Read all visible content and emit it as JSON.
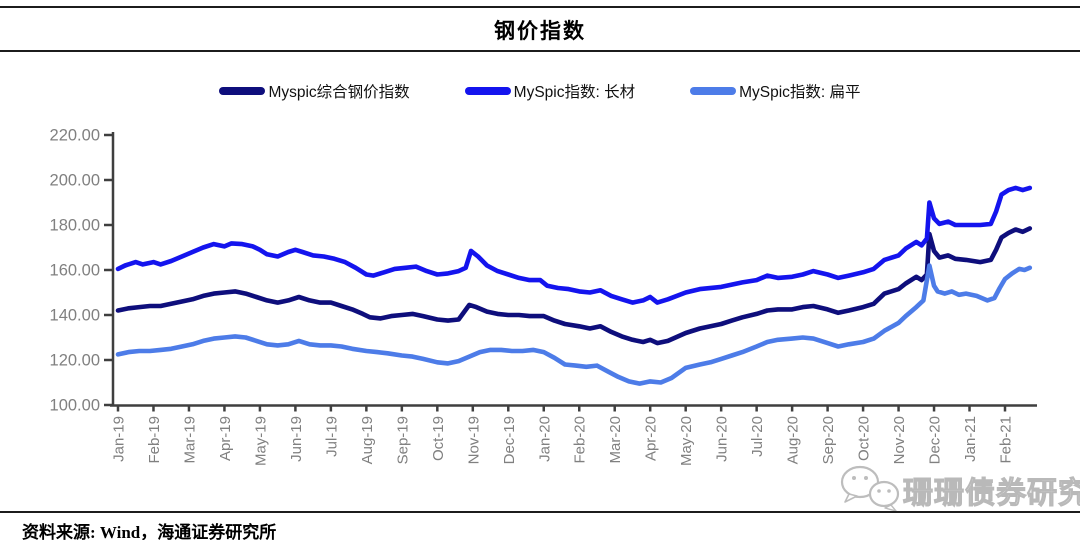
{
  "title": "钢价指数",
  "source_note": "资料来源: Wind，海通证券研究所",
  "watermark": {
    "icon": "wechat-logo",
    "text": "珊珊债券研究"
  },
  "colors": {
    "navy": "#0e0e7c",
    "blue": "#1414ee",
    "light_blue": "#4d7ce8",
    "axis": "#3f3f3f",
    "tick_label": "#808080",
    "watermark": "#b9b9b9"
  },
  "legend": [
    {
      "label": "Myspic综合钢价指数",
      "color": "#0e0e7c"
    },
    {
      "label": "MySpic指数: 长材",
      "color": "#1414ee"
    },
    {
      "label": "MySpic指数: 扁平",
      "color": "#4d7ce8"
    }
  ],
  "chart_data": {
    "type": "line",
    "title": "钢价指数",
    "xlabel": "",
    "ylabel": "",
    "ylim": [
      100,
      220
    ],
    "grid": false,
    "legend_position": "top",
    "x_unit": "month index, 0 = Jan-19",
    "x_tick_labels": [
      "Jan-19",
      "Feb-19",
      "Mar-19",
      "Apr-19",
      "May-19",
      "Jun-19",
      "Jul-19",
      "Aug-19",
      "Sep-19",
      "Oct-19",
      "Nov-19",
      "Dec-19",
      "Jan-20",
      "Feb-20",
      "Mar-20",
      "Apr-20",
      "May-20",
      "Jun-20",
      "Jul-20",
      "Aug-20",
      "Sep-20",
      "Oct-20",
      "Nov-20",
      "Dec-20",
      "Jan-21",
      "Feb-21"
    ],
    "y_ticks": [
      {
        "value": 100,
        "label": "100.00"
      },
      {
        "value": 120,
        "label": "120.00"
      },
      {
        "value": 140,
        "label": "140.00"
      },
      {
        "value": 160,
        "label": "160.00"
      },
      {
        "value": 180,
        "label": "180.00"
      },
      {
        "value": 200,
        "label": "200.00"
      },
      {
        "value": 220,
        "label": "220.00"
      }
    ],
    "series": [
      {
        "name": "Myspic综合钢价指数",
        "color": "#0e0e7c",
        "points": [
          [
            0,
            142
          ],
          [
            0.3,
            143
          ],
          [
            0.6,
            143.5
          ],
          [
            0.9,
            144
          ],
          [
            1.2,
            144
          ],
          [
            1.5,
            145
          ],
          [
            1.8,
            146
          ],
          [
            2.1,
            147
          ],
          [
            2.4,
            148.5
          ],
          [
            2.7,
            149.5
          ],
          [
            3,
            150
          ],
          [
            3.3,
            150.5
          ],
          [
            3.6,
            149.5
          ],
          [
            3.9,
            148
          ],
          [
            4.2,
            146.5
          ],
          [
            4.5,
            145.5
          ],
          [
            4.8,
            146.5
          ],
          [
            5.1,
            148
          ],
          [
            5.4,
            146.5
          ],
          [
            5.7,
            145.5
          ],
          [
            6,
            145.5
          ],
          [
            6.3,
            144
          ],
          [
            6.6,
            142.5
          ],
          [
            6.9,
            140.5
          ],
          [
            7.1,
            139
          ],
          [
            7.4,
            138.5
          ],
          [
            7.7,
            139.5
          ],
          [
            8,
            140
          ],
          [
            8.3,
            140.5
          ],
          [
            8.6,
            139.5
          ],
          [
            9,
            138
          ],
          [
            9.3,
            137.5
          ],
          [
            9.6,
            138
          ],
          [
            9.9,
            144.5
          ],
          [
            10.1,
            143.5
          ],
          [
            10.4,
            141.5
          ],
          [
            10.7,
            140.5
          ],
          [
            11,
            140
          ],
          [
            11.3,
            140
          ],
          [
            11.6,
            139.5
          ],
          [
            12,
            139.5
          ],
          [
            12.3,
            137.5
          ],
          [
            12.6,
            136
          ],
          [
            13,
            135
          ],
          [
            13.3,
            134
          ],
          [
            13.6,
            135
          ],
          [
            13.9,
            132.5
          ],
          [
            14.2,
            130.5
          ],
          [
            14.5,
            129
          ],
          [
            14.8,
            128
          ],
          [
            15,
            129
          ],
          [
            15.2,
            127.5
          ],
          [
            15.5,
            128.5
          ],
          [
            16,
            132
          ],
          [
            16.4,
            134
          ],
          [
            17,
            136
          ],
          [
            17.3,
            137.5
          ],
          [
            17.6,
            139
          ],
          [
            18,
            140.5
          ],
          [
            18.3,
            142
          ],
          [
            18.6,
            142.5
          ],
          [
            19,
            142.5
          ],
          [
            19.3,
            143.5
          ],
          [
            19.6,
            144
          ],
          [
            20,
            142.5
          ],
          [
            20.3,
            141
          ],
          [
            20.6,
            142
          ],
          [
            21,
            143.5
          ],
          [
            21.3,
            145
          ],
          [
            21.6,
            149.5
          ],
          [
            22,
            151.5
          ],
          [
            22.2,
            154
          ],
          [
            22.5,
            157
          ],
          [
            22.65,
            155.5
          ],
          [
            22.8,
            158
          ],
          [
            22.87,
            176
          ],
          [
            23,
            168.5
          ],
          [
            23.15,
            165.5
          ],
          [
            23.4,
            166.5
          ],
          [
            23.6,
            165
          ],
          [
            23.9,
            164.5
          ],
          [
            24.3,
            163.5
          ],
          [
            24.6,
            164.5
          ],
          [
            24.75,
            169
          ],
          [
            24.9,
            174.5
          ],
          [
            25.1,
            176.5
          ],
          [
            25.3,
            178
          ],
          [
            25.5,
            177
          ],
          [
            25.7,
            178.5
          ]
        ]
      },
      {
        "name": "MySpic指数: 长材",
        "color": "#1414ee",
        "points": [
          [
            0,
            160.5
          ],
          [
            0.2,
            162
          ],
          [
            0.5,
            163.5
          ],
          [
            0.7,
            162.5
          ],
          [
            1,
            163.5
          ],
          [
            1.2,
            162.5
          ],
          [
            1.5,
            164
          ],
          [
            1.8,
            166
          ],
          [
            2.1,
            168
          ],
          [
            2.4,
            170
          ],
          [
            2.7,
            171.5
          ],
          [
            3,
            170.5
          ],
          [
            3.2,
            171.8
          ],
          [
            3.5,
            171.5
          ],
          [
            3.8,
            170.5
          ],
          [
            4,
            169
          ],
          [
            4.2,
            167
          ],
          [
            4.5,
            166
          ],
          [
            4.8,
            168
          ],
          [
            5,
            169
          ],
          [
            5.2,
            168
          ],
          [
            5.5,
            166.5
          ],
          [
            5.8,
            166
          ],
          [
            6.1,
            165
          ],
          [
            6.4,
            163.5
          ],
          [
            6.7,
            161
          ],
          [
            7,
            158
          ],
          [
            7.2,
            157.5
          ],
          [
            7.5,
            159
          ],
          [
            7.8,
            160.5
          ],
          [
            8.1,
            161
          ],
          [
            8.4,
            161.5
          ],
          [
            8.7,
            159.5
          ],
          [
            9,
            158
          ],
          [
            9.3,
            158.5
          ],
          [
            9.6,
            159.5
          ],
          [
            9.8,
            161
          ],
          [
            9.95,
            168.5
          ],
          [
            10.15,
            166
          ],
          [
            10.4,
            162
          ],
          [
            10.7,
            159.5
          ],
          [
            11,
            158
          ],
          [
            11.3,
            156.5
          ],
          [
            11.6,
            155.5
          ],
          [
            11.9,
            155.5
          ],
          [
            12.1,
            153
          ],
          [
            12.4,
            152
          ],
          [
            12.7,
            151.5
          ],
          [
            13,
            150.5
          ],
          [
            13.3,
            150
          ],
          [
            13.6,
            151
          ],
          [
            13.9,
            148.5
          ],
          [
            14.2,
            147
          ],
          [
            14.5,
            145.5
          ],
          [
            14.8,
            146.5
          ],
          [
            15,
            148
          ],
          [
            15.2,
            145.5
          ],
          [
            15.5,
            147
          ],
          [
            16,
            150
          ],
          [
            16.4,
            151.5
          ],
          [
            17,
            152.5
          ],
          [
            17.3,
            153.5
          ],
          [
            17.6,
            154.5
          ],
          [
            18,
            155.5
          ],
          [
            18.3,
            157.5
          ],
          [
            18.6,
            156.5
          ],
          [
            19,
            157
          ],
          [
            19.3,
            158
          ],
          [
            19.6,
            159.5
          ],
          [
            20,
            158
          ],
          [
            20.3,
            156.5
          ],
          [
            20.6,
            157.5
          ],
          [
            21,
            159
          ],
          [
            21.3,
            160.5
          ],
          [
            21.6,
            164.5
          ],
          [
            22,
            166.5
          ],
          [
            22.2,
            169.5
          ],
          [
            22.5,
            172.5
          ],
          [
            22.65,
            171
          ],
          [
            22.8,
            174
          ],
          [
            22.87,
            190
          ],
          [
            23,
            183
          ],
          [
            23.15,
            180.5
          ],
          [
            23.4,
            181.5
          ],
          [
            23.6,
            180
          ],
          [
            23.9,
            180
          ],
          [
            24.3,
            180
          ],
          [
            24.6,
            180.5
          ],
          [
            24.75,
            186
          ],
          [
            24.9,
            193.5
          ],
          [
            25.1,
            195.5
          ],
          [
            25.3,
            196.5
          ],
          [
            25.5,
            195.5
          ],
          [
            25.7,
            196.5
          ]
        ]
      },
      {
        "name": "MySpic指数: 扁平",
        "color": "#4d7ce8",
        "points": [
          [
            0,
            122.5
          ],
          [
            0.3,
            123.5
          ],
          [
            0.6,
            124
          ],
          [
            0.9,
            124
          ],
          [
            1.2,
            124.5
          ],
          [
            1.5,
            125
          ],
          [
            1.8,
            126
          ],
          [
            2.1,
            127
          ],
          [
            2.4,
            128.5
          ],
          [
            2.7,
            129.5
          ],
          [
            3,
            130
          ],
          [
            3.3,
            130.5
          ],
          [
            3.6,
            130
          ],
          [
            3.9,
            128.5
          ],
          [
            4.2,
            127
          ],
          [
            4.5,
            126.5
          ],
          [
            4.8,
            127
          ],
          [
            5.1,
            128.5
          ],
          [
            5.4,
            127
          ],
          [
            5.7,
            126.5
          ],
          [
            6,
            126.5
          ],
          [
            6.3,
            126
          ],
          [
            6.6,
            125
          ],
          [
            7,
            124
          ],
          [
            7.3,
            123.5
          ],
          [
            7.6,
            123
          ],
          [
            8,
            122
          ],
          [
            8.3,
            121.5
          ],
          [
            8.6,
            120.5
          ],
          [
            9,
            119
          ],
          [
            9.3,
            118.5
          ],
          [
            9.6,
            119.5
          ],
          [
            9.9,
            121.5
          ],
          [
            10.2,
            123.5
          ],
          [
            10.5,
            124.5
          ],
          [
            10.8,
            124.5
          ],
          [
            11.1,
            124
          ],
          [
            11.4,
            124
          ],
          [
            11.7,
            124.5
          ],
          [
            12,
            123.5
          ],
          [
            12.3,
            121
          ],
          [
            12.6,
            118
          ],
          [
            12.9,
            117.5
          ],
          [
            13.2,
            117
          ],
          [
            13.5,
            117.5
          ],
          [
            13.8,
            115
          ],
          [
            14.1,
            112.5
          ],
          [
            14.4,
            110.5
          ],
          [
            14.7,
            109.5
          ],
          [
            15,
            110.5
          ],
          [
            15.3,
            110
          ],
          [
            15.6,
            112
          ],
          [
            16,
            116.5
          ],
          [
            16.4,
            118
          ],
          [
            16.7,
            119
          ],
          [
            17,
            120.5
          ],
          [
            17.3,
            122
          ],
          [
            17.6,
            123.5
          ],
          [
            18,
            126
          ],
          [
            18.3,
            128
          ],
          [
            18.6,
            129
          ],
          [
            19,
            129.5
          ],
          [
            19.3,
            130
          ],
          [
            19.6,
            129.5
          ],
          [
            20,
            127.5
          ],
          [
            20.3,
            126
          ],
          [
            20.6,
            127
          ],
          [
            21,
            128
          ],
          [
            21.3,
            129.5
          ],
          [
            21.6,
            133
          ],
          [
            22,
            136.5
          ],
          [
            22.2,
            139.5
          ],
          [
            22.5,
            143.5
          ],
          [
            22.7,
            146.5
          ],
          [
            22.87,
            162
          ],
          [
            23,
            153
          ],
          [
            23.1,
            150.5
          ],
          [
            23.3,
            149.5
          ],
          [
            23.5,
            150.5
          ],
          [
            23.7,
            149
          ],
          [
            23.9,
            149.5
          ],
          [
            24.2,
            148.5
          ],
          [
            24.5,
            146.5
          ],
          [
            24.7,
            147.5
          ],
          [
            24.85,
            152
          ],
          [
            25,
            156
          ],
          [
            25.2,
            158.5
          ],
          [
            25.4,
            160.5
          ],
          [
            25.55,
            160
          ],
          [
            25.7,
            161
          ]
        ]
      }
    ]
  }
}
